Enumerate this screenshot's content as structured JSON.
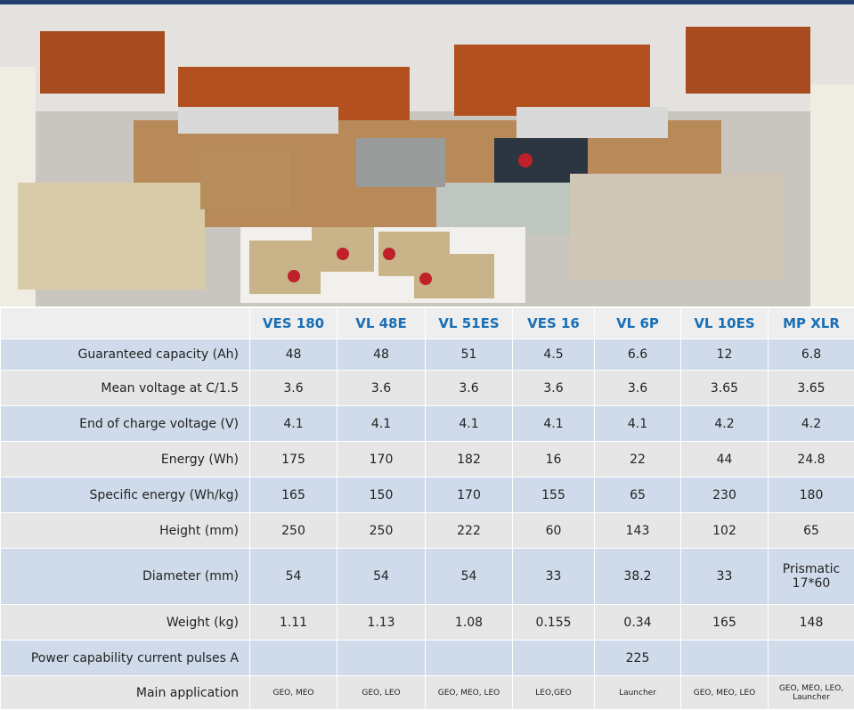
{
  "table": {
    "header": [
      "VES 180",
      "VL 48E",
      "VL 51ES",
      "VES 16",
      "VL 6P",
      "VL 10ES",
      "MP XLR"
    ],
    "rows": [
      {
        "label": "Guaranteed  capacity (Ah)",
        "values": [
          "48",
          "48",
          "51",
          "4.5",
          "6.6",
          "12",
          "6.8"
        ]
      },
      {
        "label": "Mean voltage at C/1.5",
        "values": [
          "3.6",
          "3.6",
          "3.6",
          "3.6",
          "3.6",
          "3.65",
          "3.65"
        ]
      },
      {
        "label": "End of charge voltage (V)",
        "values": [
          "4.1",
          "4.1",
          "4.1",
          "4.1",
          "4.1",
          "4.2",
          "4.2"
        ]
      },
      {
        "label": "Energy (Wh)",
        "values": [
          "175",
          "170",
          "182",
          "16",
          "22",
          "44",
          "24.8"
        ]
      },
      {
        "label": "Specific energy (Wh/kg)",
        "values": [
          "165",
          "150",
          "170",
          "155",
          "65",
          "230",
          "180"
        ]
      },
      {
        "label": "Height (mm)",
        "values": [
          "250",
          "250",
          "222",
          "60",
          "143",
          "102",
          "65"
        ]
      },
      {
        "label": "Diameter (mm)",
        "values": [
          "54",
          "54",
          "54",
          "33",
          "38.2",
          "33",
          "Prismatic 17*60"
        ]
      },
      {
        "label": "Weight (kg)",
        "values": [
          "1.11",
          "1.13",
          "1.08",
          "0.155",
          "0.34",
          "165",
          "148"
        ]
      },
      {
        "label": "Power capability current pulses A",
        "values": [
          null,
          null,
          null,
          null,
          "225",
          null,
          null
        ]
      },
      {
        "label": "Main application",
        "values": [
          "GEO, MEO",
          "GEO, LEO",
          "GEO, MEO, LEO",
          "LEO,GEO",
          "Launcher",
          "GEO, MEO, LEO",
          "GEO, MEO, LEO, Launcher"
        ]
      }
    ]
  }
}
